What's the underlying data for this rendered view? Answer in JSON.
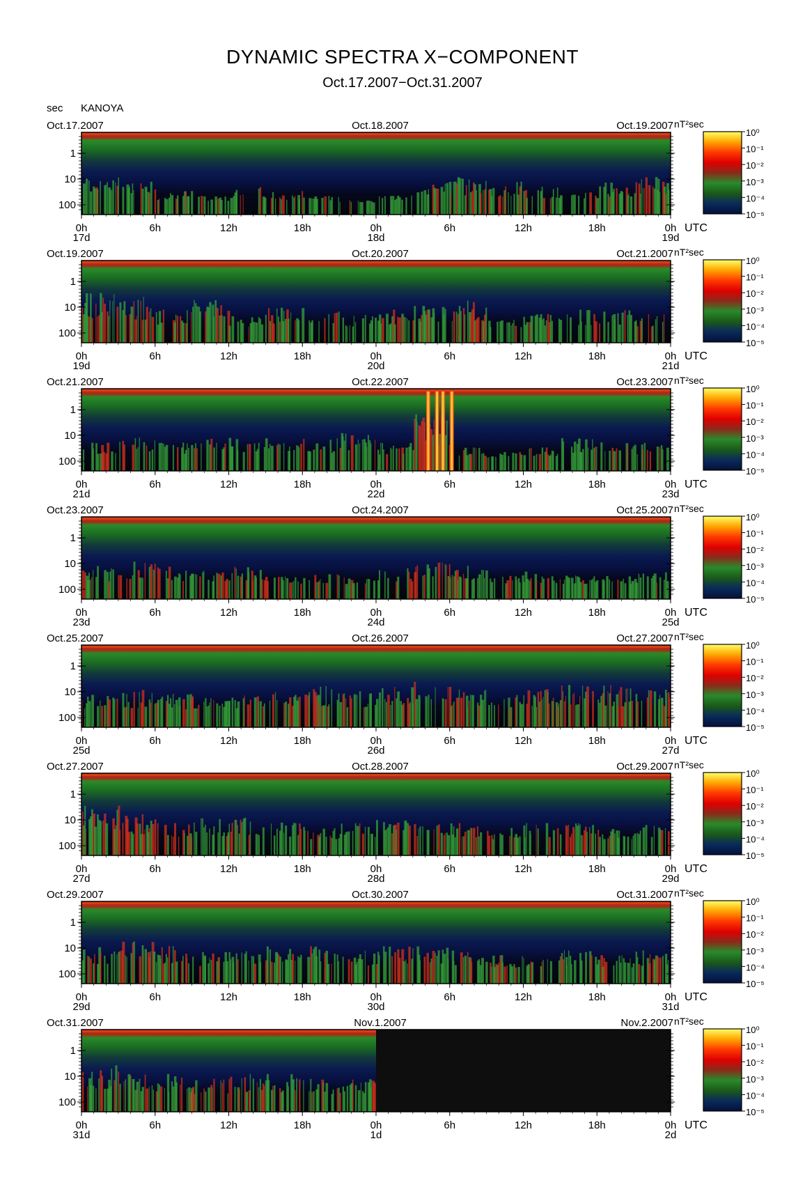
{
  "header": {
    "title": "DYNAMIC SPECTRA X−COMPONENT",
    "subtitle": "Oct.17.2007−Oct.31.2007",
    "y_unit": "sec",
    "station": "KANOYA"
  },
  "colors": {
    "background": "#000000",
    "bands": [
      "#bd2a10",
      "#1c7a1e",
      "#0a3f12",
      "#0a1040",
      "#05081a"
    ],
    "bursts": [
      "#d3321b",
      "#37a33a",
      "#ff8a00"
    ]
  },
  "chart_data": {
    "type": "heatmap",
    "x_tick_labels": [
      "0h",
      "6h",
      "12h",
      "18h",
      "0h",
      "6h",
      "12h",
      "18h",
      "0h"
    ],
    "x_axis_unit": "UTC",
    "y_tick_labels": [
      "1",
      "10",
      "100"
    ],
    "y_axis_label": "sec",
    "colorbar": {
      "unit": "nT²sec",
      "labels": [
        "10⁰",
        "10⁻¹",
        "10⁻²",
        "10⁻³",
        "10⁻⁴",
        "10⁻⁵"
      ],
      "colors": [
        "#ffff66",
        "#ffa500",
        "#ff3a00",
        "#e00000",
        "#8b2a1a",
        "#2a8a2a",
        "#1a5a1a",
        "#0a2a5a",
        "#05103a"
      ]
    },
    "panels": [
      {
        "date_left": "Oct.17.2007",
        "date_mid": "Oct.18.2007",
        "date_right": "Oct.19.2007",
        "day_labels": [
          "17d",
          "18d",
          "19d"
        ],
        "data_fraction": 1.0,
        "activity": [
          0.6,
          0.5,
          0.3,
          0.2,
          0.4,
          0.3,
          0.2,
          0.1,
          0.2,
          0.5,
          0.6,
          0.5,
          0.4,
          0.3,
          0.5,
          0.6
        ]
      },
      {
        "date_left": "Oct.19.2007",
        "date_mid": "Oct.20.2007",
        "date_right": "Oct.21.2007",
        "day_labels": [
          "19d",
          "20d",
          "21d"
        ],
        "data_fraction": 1.0,
        "activity": [
          0.9,
          0.8,
          0.5,
          0.7,
          0.4,
          0.6,
          0.5,
          0.4,
          0.5,
          0.6,
          0.7,
          0.3,
          0.4,
          0.5,
          0.5,
          0.4
        ]
      },
      {
        "date_left": "Oct.21.2007",
        "date_mid": "Oct.22.2007",
        "date_right": "Oct.23.2007",
        "day_labels": [
          "21d",
          "22d",
          "23d"
        ],
        "data_fraction": 1.0,
        "activity": [
          0.4,
          0.5,
          0.4,
          0.5,
          0.5,
          0.4,
          0.5,
          0.6,
          0.4,
          1.0,
          0.3,
          0.2,
          0.3,
          0.5,
          0.4,
          0.4
        ]
      },
      {
        "date_left": "Oct.23.2007",
        "date_mid": "Oct.24.2007",
        "date_right": "Oct.25.2007",
        "day_labels": [
          "23d",
          "24d",
          "25d"
        ],
        "data_fraction": 1.0,
        "activity": [
          0.5,
          0.6,
          0.5,
          0.4,
          0.5,
          0.3,
          0.4,
          0.3,
          0.5,
          0.6,
          0.5,
          0.3,
          0.4,
          0.3,
          0.3,
          0.4
        ]
      },
      {
        "date_left": "Oct.25.2007",
        "date_mid": "Oct.26.2007",
        "date_right": "Oct.27.2007",
        "day_labels": [
          "25d",
          "26d",
          "27d"
        ],
        "data_fraction": 1.0,
        "activity": [
          0.5,
          0.6,
          0.5,
          0.5,
          0.5,
          0.6,
          0.7,
          0.6,
          0.7,
          0.8,
          0.6,
          0.5,
          0.6,
          0.7,
          0.7,
          0.6
        ]
      },
      {
        "date_left": "Oct.27.2007",
        "date_mid": "Oct.28.2007",
        "date_right": "Oct.29.2007",
        "day_labels": [
          "27d",
          "28d",
          "29d"
        ],
        "data_fraction": 1.0,
        "activity": [
          0.9,
          0.7,
          0.5,
          0.6,
          0.6,
          0.5,
          0.4,
          0.5,
          0.6,
          0.5,
          0.5,
          0.4,
          0.5,
          0.5,
          0.4,
          0.5
        ]
      },
      {
        "date_left": "Oct.29.2007",
        "date_mid": "Oct.30.2007",
        "date_right": "Oct.31.2007",
        "day_labels": [
          "29d",
          "30d",
          "31d"
        ],
        "data_fraction": 1.0,
        "activity": [
          0.6,
          0.7,
          0.6,
          0.5,
          0.5,
          0.6,
          0.6,
          0.5,
          0.6,
          0.6,
          0.5,
          0.4,
          0.4,
          0.5,
          0.4,
          0.5
        ]
      },
      {
        "date_left": "Oct.31.2007",
        "date_mid": "Nov.1.2007",
        "date_right": "Nov.2.2007",
        "day_labels": [
          "31d",
          "1d",
          "2d"
        ],
        "data_fraction": 0.5,
        "activity": [
          0.8,
          0.6,
          0.6,
          0.5,
          0.6,
          0.6,
          0.5,
          0.5,
          0,
          0,
          0,
          0,
          0,
          0,
          0,
          0
        ]
      }
    ]
  }
}
